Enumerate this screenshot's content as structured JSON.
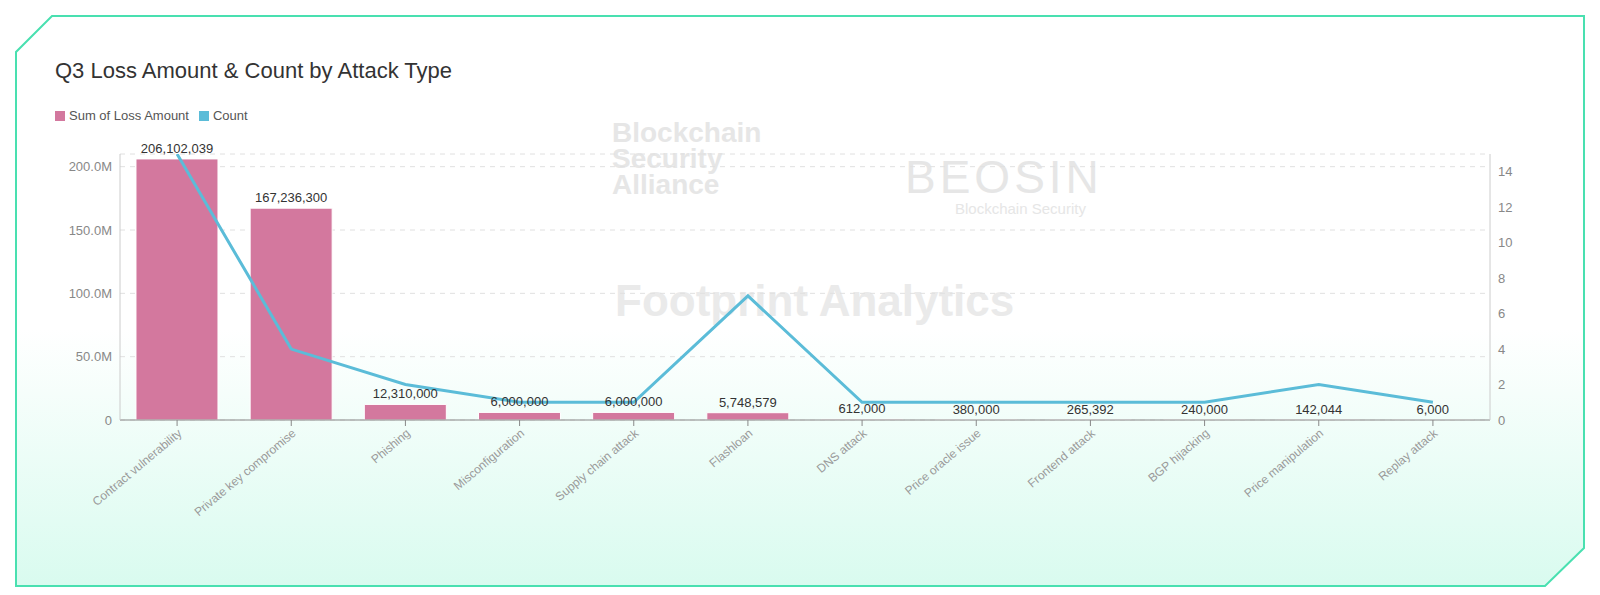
{
  "chart_data": {
    "type": "combo",
    "title": "Q3 Loss Amount & Count by Attack Type",
    "categories": [
      "Contract vulnerability",
      "Private key compromise",
      "Phishing",
      "Misconfiguration",
      "Supply chain attack",
      "Flashloan",
      "DNS attack",
      "Price oracle issue",
      "Frontend attack",
      "BGP hijacking",
      "Price manipulation",
      "Replay attack"
    ],
    "series": [
      {
        "name": "Sum of Loss Amount",
        "type": "bar",
        "color": "#d3789e",
        "values": [
          206102039,
          167236300,
          12310000,
          6000000,
          6000000,
          5748579,
          612000,
          380000,
          265392,
          240000,
          142044,
          6000
        ],
        "value_labels": [
          "206,102,039",
          "167,236,300",
          "12,310,000",
          "6,000,000",
          "6,000,000",
          "5,748,579",
          "612,000",
          "380,000",
          "265,392",
          "240,000",
          "142,044",
          "6,000"
        ]
      },
      {
        "name": "Count",
        "type": "line",
        "axis": "y2",
        "color": "#5bbcd8",
        "values": [
          15,
          4,
          2,
          1,
          1,
          7,
          1,
          1,
          1,
          1,
          2,
          1
        ]
      }
    ],
    "ylim": [
      0,
      210000000
    ],
    "yticks": [
      0,
      {
        "value": 50000000,
        "label": "50.0M"
      },
      {
        "value": 100000000,
        "label": "100.0M"
      },
      {
        "value": 150000000,
        "label": "150.0M"
      },
      {
        "value": 200000000,
        "label": "200.0M"
      }
    ],
    "y2lim": [
      0,
      15
    ],
    "y2ticks": [
      0,
      2,
      4,
      6,
      8,
      10,
      12,
      14
    ],
    "grid": true,
    "legend": "top-left",
    "data_labels": true,
    "annotations": [
      "Blockchain Security Alliance",
      "BEOSIN",
      "Blockchain Security",
      "Footprint Analytics"
    ]
  }
}
